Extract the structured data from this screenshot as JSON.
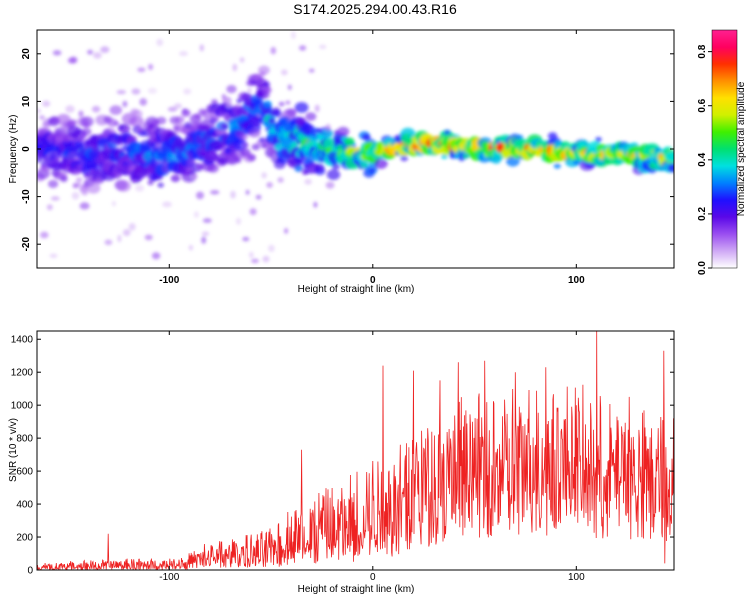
{
  "figure_title": "S174.2025.294.00.43.R16",
  "chart_data": [
    {
      "type": "heatmap",
      "title": "",
      "xlabel": "Height of straight line (km)",
      "ylabel": "Frequency (Hz)",
      "xlim": [
        -165,
        148
      ],
      "ylim": [
        -25,
        25
      ],
      "xticks": [
        -100,
        0,
        100
      ],
      "yticks": [
        -20,
        -10,
        0,
        10,
        20
      ],
      "colorbar": {
        "label": "Normalized spectral amplitude",
        "range": [
          0.0,
          0.88
        ],
        "ticks": [
          0.0,
          0.2,
          0.4,
          0.6,
          0.8
        ],
        "colors": [
          "#ffffff",
          "#cfa8f5",
          "#9a4ef0",
          "#5a08e8",
          "#1f10ff",
          "#0080ff",
          "#00e0e0",
          "#00e070",
          "#40f000",
          "#d0f000",
          "#ffe000",
          "#ff9000",
          "#ff3000",
          "#ff0060",
          "#ff2090"
        ]
      },
      "ridge": [
        {
          "x": -160,
          "f": 0
        },
        {
          "x": -140,
          "f": -1
        },
        {
          "x": -120,
          "f": 0
        },
        {
          "x": -100,
          "f": -2
        },
        {
          "x": -80,
          "f": 2
        },
        {
          "x": -65,
          "f": 5
        },
        {
          "x": -55,
          "f": 9
        },
        {
          "x": -45,
          "f": 2
        },
        {
          "x": -35,
          "f": 1
        },
        {
          "x": -20,
          "f": 0
        },
        {
          "x": 0,
          "f": -1
        },
        {
          "x": 20,
          "f": 1
        },
        {
          "x": 40,
          "f": 1
        },
        {
          "x": 60,
          "f": 0
        },
        {
          "x": 80,
          "f": 0
        },
        {
          "x": 100,
          "f": -1
        },
        {
          "x": 120,
          "f": -1
        },
        {
          "x": 147,
          "f": -2
        }
      ],
      "ridge_amplitude": [
        {
          "x": -165,
          "a": 0.25
        },
        {
          "x": -100,
          "a": 0.3
        },
        {
          "x": -60,
          "a": 0.3
        },
        {
          "x": -30,
          "a": 0.45
        },
        {
          "x": 0,
          "a": 0.55
        },
        {
          "x": 20,
          "a": 0.7
        },
        {
          "x": 60,
          "a": 0.7
        },
        {
          "x": 100,
          "a": 0.65
        },
        {
          "x": 148,
          "a": 0.6
        }
      ]
    },
    {
      "type": "line",
      "title": "",
      "xlabel": "Height of straight line (km)",
      "ylabel": "SNR (10 * v/v)",
      "xlim": [
        -165,
        148
      ],
      "ylim": [
        0,
        1450
      ],
      "xticks": [
        -100,
        0,
        100
      ],
      "yticks": [
        0,
        200,
        400,
        600,
        800,
        1000,
        1200,
        1400
      ],
      "series": [
        {
          "name": "SNR",
          "color": "#ee2222",
          "envelope": [
            {
              "x": -165,
              "low": 0,
              "mid": 15,
              "high": 40
            },
            {
              "x": -140,
              "low": 0,
              "mid": 20,
              "high": 60
            },
            {
              "x": -120,
              "low": 0,
              "mid": 25,
              "high": 70
            },
            {
              "x": -100,
              "low": 0,
              "mid": 30,
              "high": 70
            },
            {
              "x": -90,
              "low": 5,
              "mid": 40,
              "high": 110
            },
            {
              "x": -80,
              "low": 10,
              "mid": 60,
              "high": 180
            },
            {
              "x": -70,
              "low": 10,
              "mid": 80,
              "high": 200
            },
            {
              "x": -60,
              "low": 15,
              "mid": 90,
              "high": 220
            },
            {
              "x": -50,
              "low": 15,
              "mid": 110,
              "high": 260
            },
            {
              "x": -40,
              "low": 20,
              "mid": 150,
              "high": 380
            },
            {
              "x": -30,
              "low": 20,
              "mid": 200,
              "high": 480
            },
            {
              "x": -20,
              "low": 30,
              "mid": 240,
              "high": 520
            },
            {
              "x": -10,
              "low": 40,
              "mid": 280,
              "high": 600
            },
            {
              "x": 0,
              "low": 60,
              "mid": 320,
              "high": 700
            },
            {
              "x": 10,
              "low": 80,
              "mid": 380,
              "high": 820
            },
            {
              "x": 20,
              "low": 120,
              "mid": 450,
              "high": 920
            },
            {
              "x": 40,
              "low": 180,
              "mid": 540,
              "high": 1050
            },
            {
              "x": 60,
              "low": 200,
              "mid": 580,
              "high": 1100
            },
            {
              "x": 80,
              "low": 200,
              "mid": 590,
              "high": 1150
            },
            {
              "x": 100,
              "low": 200,
              "mid": 600,
              "high": 1150
            },
            {
              "x": 120,
              "low": 180,
              "mid": 580,
              "high": 1000
            },
            {
              "x": 148,
              "low": 150,
              "mid": 560,
              "high": 950
            }
          ],
          "spikes": [
            {
              "x": -130,
              "y": 220
            },
            {
              "x": -35,
              "y": 730
            },
            {
              "x": 5,
              "y": 1240
            },
            {
              "x": 20,
              "y": 1210
            },
            {
              "x": 33,
              "y": 1150
            },
            {
              "x": 42,
              "y": 1260
            },
            {
              "x": 55,
              "y": 1270
            },
            {
              "x": 70,
              "y": 1200
            },
            {
              "x": 85,
              "y": 1230
            },
            {
              "x": 100,
              "y": 1000
            },
            {
              "x": 110,
              "y": 1450
            },
            {
              "x": 126,
              "y": 1050
            },
            {
              "x": 143,
              "y": 1330
            },
            {
              "x": 143.5,
              "y": 40
            }
          ]
        }
      ]
    }
  ]
}
